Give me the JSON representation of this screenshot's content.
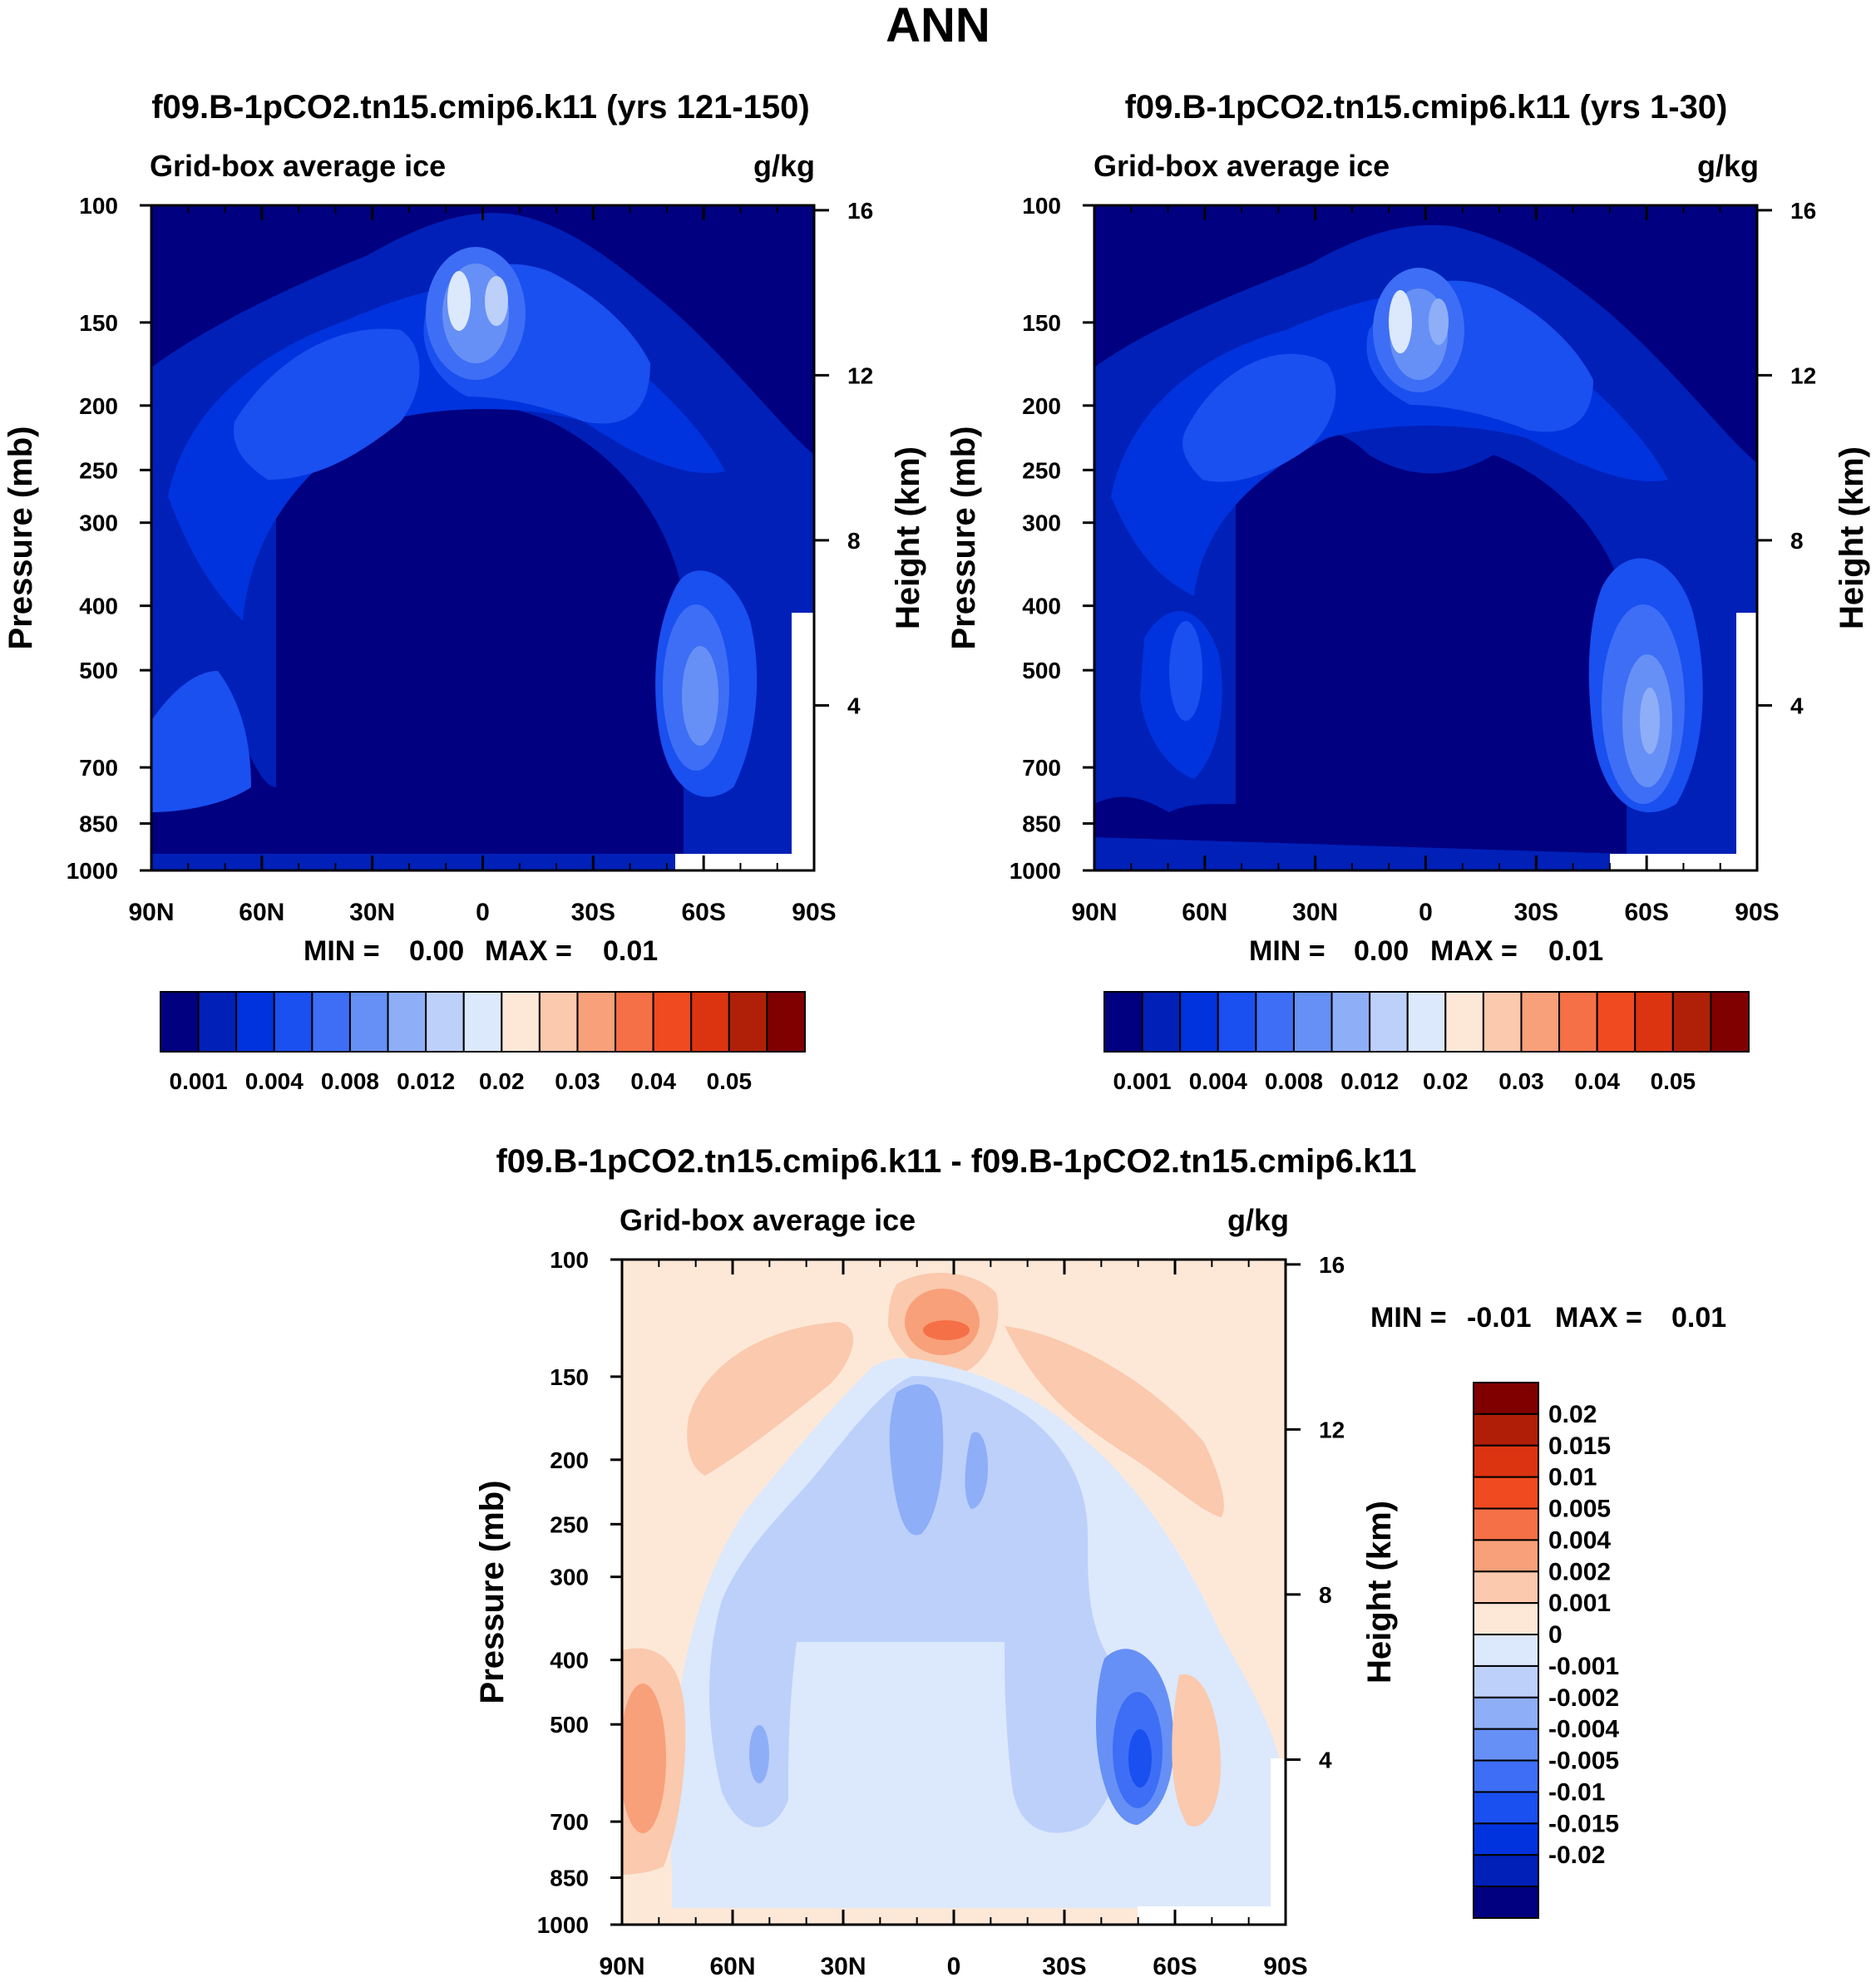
{
  "figure": {
    "title": "ANN",
    "units": "g/kg",
    "field_label": "Grid-box average ice",
    "ylabel_left": "Pressure (mb)",
    "ylabel_right": "Height (km)"
  },
  "chart_data": [
    {
      "type": "heatmap",
      "id": "panel-1",
      "title": "f09.B-1pCO2.tn15.cmip6.k11 (yrs 121-150)",
      "subtitle_left": "Grid-box average ice",
      "subtitle_right": "g/kg",
      "xlabel": "",
      "ylabel": "Pressure (mb)",
      "ylabel2": "Height (km)",
      "x_ticks": [
        "90N",
        "60N",
        "30N",
        "0",
        "30S",
        "60S",
        "90S"
      ],
      "x_range": [
        90,
        -90
      ],
      "y_ticks": [
        100,
        150,
        200,
        250,
        300,
        400,
        500,
        700,
        850,
        1000
      ],
      "y_range": [
        100,
        1000
      ],
      "y2_ticks": [
        16,
        12,
        8,
        4
      ],
      "stats": {
        "min_label": "MIN =",
        "min": "0.00",
        "max_label": "MAX =",
        "max": "0.01"
      },
      "colorbar": {
        "orientation": "horizontal",
        "colors": [
          "#000080",
          "#0020b8",
          "#0033dd",
          "#1a4ff0",
          "#3d6ef5",
          "#6690f5",
          "#8eaef7",
          "#bcd0fa",
          "#dce8fc",
          "#fde8d8",
          "#fbc9ad",
          "#f8a07a",
          "#f57046",
          "#f04a20",
          "#dc3410",
          "#b02008",
          "#800000"
        ],
        "labels": [
          "0.001",
          "0.004",
          "0.008",
          "0.012",
          "0.02",
          "0.03",
          "0.04",
          "0.05"
        ]
      }
    },
    {
      "type": "heatmap",
      "id": "panel-2",
      "title": "f09.B-1pCO2.tn15.cmip6.k11 (yrs 1-30)",
      "subtitle_left": "Grid-box average ice",
      "subtitle_right": "g/kg",
      "xlabel": "",
      "ylabel": "Pressure (mb)",
      "ylabel2": "Height (km)",
      "x_ticks": [
        "90N",
        "60N",
        "30N",
        "0",
        "30S",
        "60S",
        "90S"
      ],
      "x_range": [
        90,
        -90
      ],
      "y_ticks": [
        100,
        150,
        200,
        250,
        300,
        400,
        500,
        700,
        850,
        1000
      ],
      "y_range": [
        100,
        1000
      ],
      "y2_ticks": [
        16,
        12,
        8,
        4
      ],
      "stats": {
        "min_label": "MIN =",
        "min": "0.00",
        "max_label": "MAX =",
        "max": "0.01"
      },
      "colorbar": {
        "orientation": "horizontal",
        "colors": [
          "#000080",
          "#0020b8",
          "#0033dd",
          "#1a4ff0",
          "#3d6ef5",
          "#6690f5",
          "#8eaef7",
          "#bcd0fa",
          "#dce8fc",
          "#fde8d8",
          "#fbc9ad",
          "#f8a07a",
          "#f57046",
          "#f04a20",
          "#dc3410",
          "#b02008",
          "#800000"
        ],
        "labels": [
          "0.001",
          "0.004",
          "0.008",
          "0.012",
          "0.02",
          "0.03",
          "0.04",
          "0.05"
        ]
      }
    },
    {
      "type": "heatmap",
      "id": "panel-diff",
      "title": "f09.B-1pCO2.tn15.cmip6.k11 - f09.B-1pCO2.tn15.cmip6.k11",
      "subtitle_left": "Grid-box average ice",
      "subtitle_right": "g/kg",
      "xlabel": "",
      "ylabel": "Pressure (mb)",
      "ylabel2": "Height (km)",
      "x_ticks": [
        "90N",
        "60N",
        "30N",
        "0",
        "30S",
        "60S",
        "90S"
      ],
      "x_range": [
        90,
        -90
      ],
      "y_ticks": [
        100,
        150,
        200,
        250,
        300,
        400,
        500,
        700,
        850,
        1000
      ],
      "y_range": [
        100,
        1000
      ],
      "y2_ticks": [
        16,
        12,
        8,
        4
      ],
      "stats": {
        "min_label": "MIN =",
        "min": "-0.01",
        "max_label": "MAX =",
        "max": "0.01"
      },
      "colorbar": {
        "orientation": "vertical",
        "colors": [
          "#800000",
          "#b01e08",
          "#dc3410",
          "#f04a20",
          "#f57046",
          "#f8a07a",
          "#fbc9ad",
          "#fde8d8",
          "#dce8fc",
          "#bcd0fa",
          "#8eaef7",
          "#6690f5",
          "#3d6ef5",
          "#1a4ff0",
          "#0033dd",
          "#0020b8",
          "#000080"
        ],
        "labels": [
          "0.02",
          "0.015",
          "0.01",
          "0.005",
          "0.004",
          "0.002",
          "0.001",
          "0",
          "-0.001",
          "-0.002",
          "-0.004",
          "-0.005",
          "-0.01",
          "-0.015",
          "-0.02"
        ]
      }
    }
  ],
  "fields": {
    "abs_bg": "#000080",
    "diff_bg": "#fde8d8"
  }
}
